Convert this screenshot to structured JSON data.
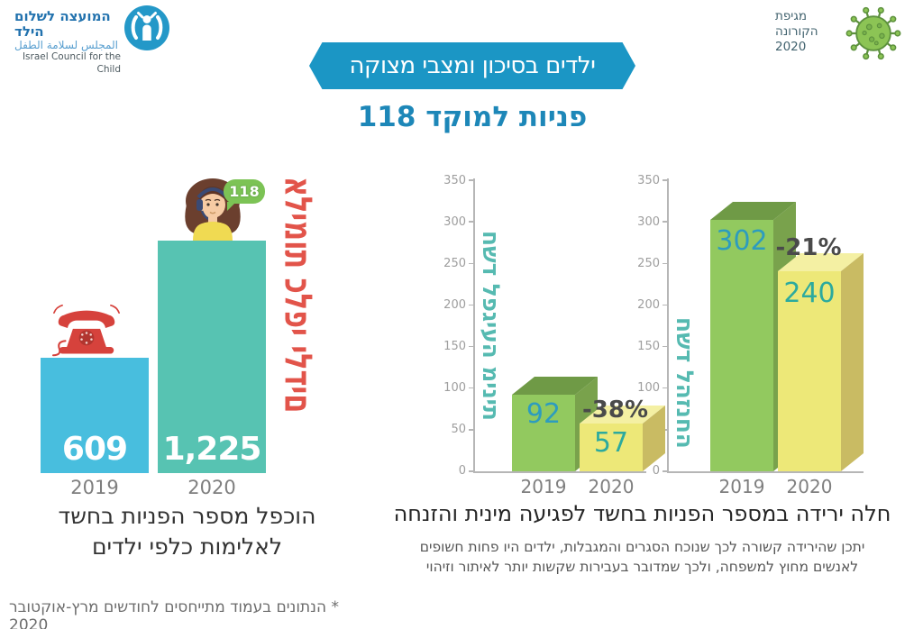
{
  "logo": {
    "name_he": "המועצה לשלום הילד",
    "name_ar": "المجلس لسلامة الطفل",
    "name_en": "Israel Council for the Child"
  },
  "corona_badge": {
    "lines": [
      "מגיפת",
      "הקורונה",
      "2020"
    ]
  },
  "page": {
    "title_banner": "ילדים בסיכון ומצבי מצוקה",
    "subtitle": "פניות למוקד 118",
    "footnote": "* הנתונים בעמוד מתייחסים לחודשים מרץ-אוקטובר 2020"
  },
  "hotline_bubble": "118",
  "left_caption": {
    "line1": "הוכפל מספר הפניות בחשד",
    "line2": "לאלימות כלפי ילדים"
  },
  "right_caption": {
    "heading": "חלה ירידה במספר הפניות בחשד לפגיעה מינית והזנחה",
    "body_line1": "יתכן שהירידה קשורה לכך שנוכח הסגרים והמגבלות, ילדים היו פחות חשופים",
    "body_line2": "לאנשים מחוץ למשפחה, ולכך שמדובר בעבירות שקשות יותר לאיתור וזיהוי"
  },
  "icons": {
    "logo": "council-logo-icon",
    "corona": "virus-icon",
    "phone": "red-rotary-phone-icon",
    "operator": "call-center-operator-illustration",
    "bubble": "speech-bubble-118"
  },
  "colors": {
    "banner_blue": "#1b96c5",
    "subtitle_blue": "#1d87b8",
    "alert_red": "#e2544a",
    "label_teal": "#56bab1",
    "bar_blue_2019": "#48bede",
    "bar_teal_2020": "#57c3b2",
    "bar_green": "#92c95f",
    "bar_yellow": "#ede878"
  },
  "chart_data": [
    {
      "type": "bar",
      "title": "אלימות כלפי ילדים",
      "categories": [
        "2019",
        "2020"
      ],
      "values": [
        609,
        1225
      ],
      "value_labels": [
        "609",
        "1,225"
      ],
      "bar_colors": [
        "#48bede",
        "#57c3b2"
      ],
      "note": "הוכפל מספר הפניות בחשד לאלימות כלפי ילדים"
    },
    {
      "type": "bar",
      "title": "חשד לפגיעה מינית",
      "categories": [
        "2019",
        "2020"
      ],
      "values": [
        92,
        57
      ],
      "change_label": "-38%",
      "ylim": [
        0,
        350
      ],
      "yticks": [
        0,
        50,
        100,
        150,
        200,
        250,
        300,
        350
      ],
      "bar_colors": [
        "#92c95f",
        "#ede878"
      ]
    },
    {
      "type": "bar",
      "title": "חשד להזנחה",
      "categories": [
        "2019",
        "2020"
      ],
      "values": [
        302,
        240
      ],
      "change_label": "-21%",
      "ylim": [
        0,
        350
      ],
      "yticks": [
        0,
        50,
        100,
        150,
        200,
        250,
        300,
        350
      ],
      "bar_colors": [
        "#92c95f",
        "#ede878"
      ]
    }
  ]
}
